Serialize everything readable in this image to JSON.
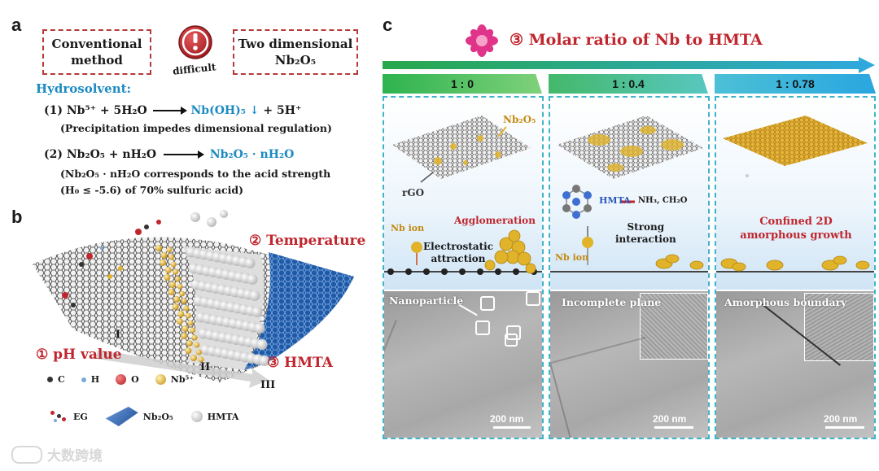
{
  "panel_a": {
    "label": "a",
    "box_left": "Conventional\nmethod",
    "box_right_line1": "Two dimensional",
    "box_right_line2": "Nb₂O₅",
    "difficult_label": "difficult",
    "hydrosolvent_label": "Hydrosolvent:",
    "eq1_prefix": "(1) Nb⁵⁺ + 5H₂O",
    "eq1_product": "Nb(OH)₅ ↓",
    "eq1_suffix": "+ 5H⁺",
    "eq1_note": "(Precipitation impedes dimensional regulation)",
    "eq2_prefix": "(2) Nb₂O₅ + nH₂O",
    "eq2_product": "Nb₂O₅ · nH₂O",
    "eq2_note1": "(Nb₂O₅ · nH₂O corresponds to the acid strength",
    "eq2_note2": "(H₀ ≤ -5.6) of 70% sulfuric acid)"
  },
  "panel_b": {
    "label": "b",
    "temperature": "② Temperature",
    "ph_value": "① pH value",
    "hmta": "③ HMTA",
    "region_1": "I",
    "region_2": "II",
    "region_3": "III",
    "legend": {
      "c": "C",
      "h": "H",
      "o": "O",
      "nb": "Nb⁵⁺",
      "eg": "EG",
      "nb2o5": "Nb₂O₅",
      "hmta": "HMTA"
    }
  },
  "panel_c": {
    "label": "c",
    "title": "③ Molar ratio of Nb to HMTA",
    "tabs": [
      "1 : 0",
      "1 : 0.4",
      "1 : 0.78"
    ],
    "col1": {
      "nb2o5": "Nb₂O₅",
      "rgo": "rGO",
      "nb_ion": "Nb ion",
      "agglomeration": "Agglomeration",
      "electrostatic": "Electrostatic\nattraction",
      "tem_label": "Nanoparticle",
      "scale": "200 nm"
    },
    "col2": {
      "hmta": "HMTA",
      "products": "NH₃, CH₂O",
      "strong": "Strong\ninteraction",
      "nb_ion": "Nb ion",
      "tem_label": "Incomplete\nplane",
      "scale": "200 nm"
    },
    "col3": {
      "confined": "Confined 2D\namorphous growth",
      "tem_label": "Amorphous\nboundary",
      "scale": "200 nm"
    }
  },
  "watermark": "大数跨境",
  "colors": {
    "red": "#c0262e",
    "blue": "#1b8ac2",
    "teal": "#3fb3c8",
    "gold": "#e0b32a"
  }
}
